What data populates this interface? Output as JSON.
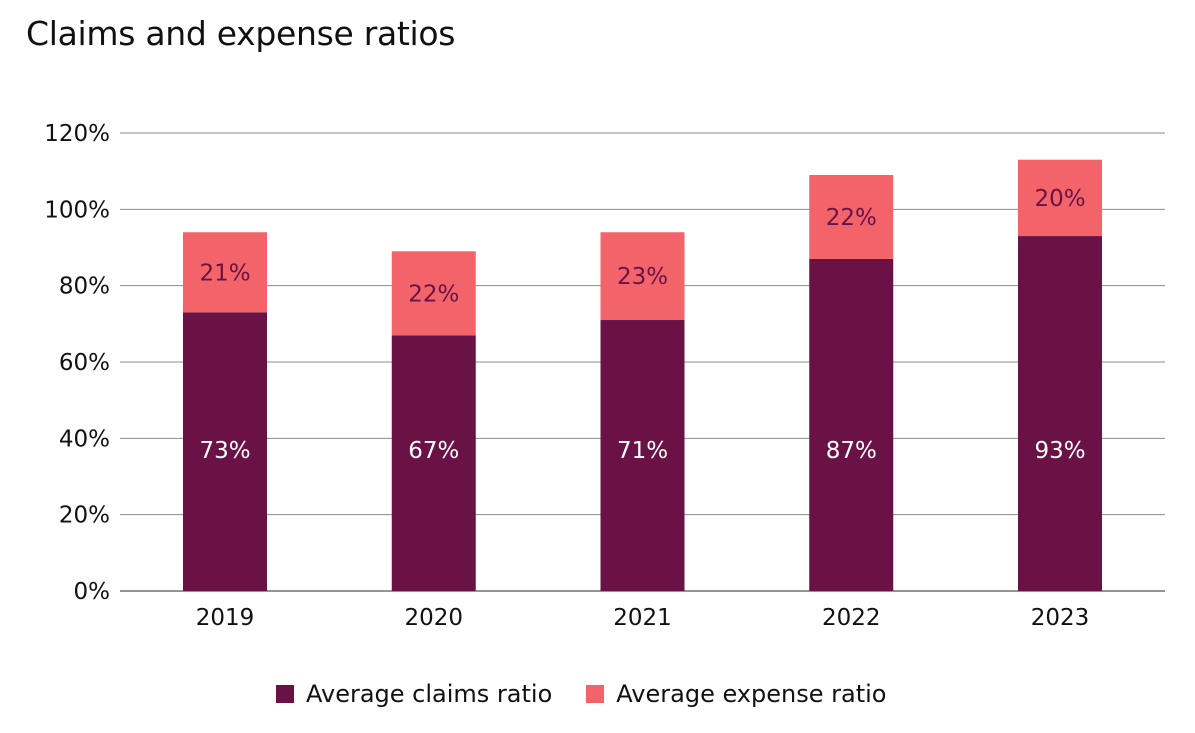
{
  "chart_data": {
    "type": "bar",
    "stacked": true,
    "title": "Claims and expense ratios",
    "xlabel": "",
    "ylabel": "",
    "categories": [
      "2019",
      "2020",
      "2021",
      "2022",
      "2023"
    ],
    "series": [
      {
        "name": "Average claims ratio",
        "values": [
          73,
          67,
          71,
          87,
          93
        ],
        "labels": [
          "73%",
          "67%",
          "71%",
          "87%",
          "93%"
        ],
        "color": "#6a1246",
        "label_color": "#ffffff"
      },
      {
        "name": "Average expense ratio",
        "values": [
          21,
          22,
          23,
          22,
          20
        ],
        "labels": [
          "21%",
          "22%",
          "23%",
          "22%",
          "20%"
        ],
        "color": "#f2646a",
        "label_color": "#6a1246"
      }
    ],
    "ylim": [
      0,
      120
    ],
    "yticks": [
      0,
      20,
      40,
      60,
      80,
      100,
      120
    ],
    "ytick_labels": [
      "0%",
      "20%",
      "40%",
      "60%",
      "80%",
      "100%",
      "120%"
    ],
    "grid": true,
    "legend_position": "bottom-center"
  }
}
